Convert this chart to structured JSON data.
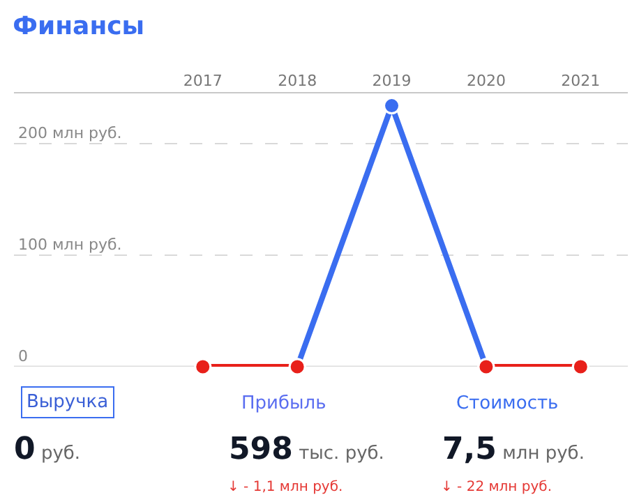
{
  "chart_data": {
    "type": "line",
    "title": "Финансы",
    "categories": [
      "2017",
      "2018",
      "2019",
      "2020",
      "2021"
    ],
    "series": [
      {
        "color": "#3a6df0",
        "values": [
          null,
          0,
          234,
          0,
          null
        ]
      },
      {
        "color": "#e8201a",
        "values": [
          0,
          0,
          null,
          0,
          0
        ]
      }
    ],
    "ylim": [
      0,
      245
    ],
    "yticks": [
      0,
      {
        "value": 100,
        "label": "100 млн руб."
      },
      {
        "value": 200,
        "label": "200 млн руб."
      }
    ],
    "grid": "y",
    "legend": false,
    "marker": "circle",
    "line_style": "solid",
    "annotations": [
      "Выручка",
      "Прибыль",
      "Стоимость",
      "0",
      "руб.",
      "598",
      "тыс. руб.",
      "7,5",
      "млн руб.",
      "↓ - 1,1 млн руб.",
      "↓ - 22 млн руб."
    ]
  }
}
